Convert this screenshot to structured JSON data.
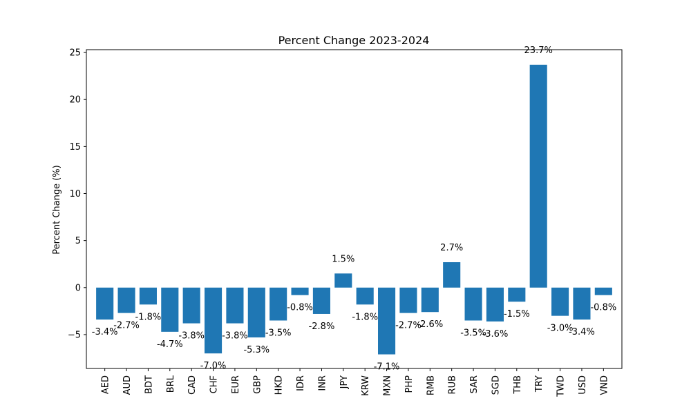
{
  "chart_data": {
    "type": "bar",
    "title": "Percent Change 2023-2024",
    "xlabel": "",
    "ylabel": "Percent Change (%)",
    "categories": [
      "AED",
      "AUD",
      "BDT",
      "BRL",
      "CAD",
      "CHF",
      "EUR",
      "GBP",
      "HKD",
      "IDR",
      "INR",
      "JPY",
      "KRW",
      "MXN",
      "PHP",
      "RMB",
      "RUB",
      "SAR",
      "SGD",
      "THB",
      "TRY",
      "TWD",
      "USD",
      "VND"
    ],
    "values": [
      -3.4,
      -2.7,
      -1.8,
      -4.7,
      -3.8,
      -7.0,
      -3.8,
      -5.3,
      -3.5,
      -0.8,
      -2.8,
      1.5,
      -1.8,
      -7.1,
      -2.7,
      -2.6,
      2.7,
      -3.5,
      -3.6,
      -1.5,
      23.7,
      -3.0,
      -3.4,
      -0.8
    ],
    "value_labels": [
      "-3.4%",
      "-2.7%",
      "-1.8%",
      "-4.7%",
      "-3.8%",
      "-7.0%",
      "-3.8%",
      "-5.3%",
      "-3.5%",
      "-0.8%",
      "-2.8%",
      "1.5%",
      "-1.8%",
      "-7.1%",
      "-2.7%",
      "-2.6%",
      "2.7%",
      "-3.5%",
      "-3.6%",
      "-1.5%",
      "23.7%",
      "-3.0%",
      "-3.4%",
      "-0.8%"
    ],
    "yticks": [
      -5,
      0,
      5,
      10,
      15,
      20,
      25
    ],
    "ylim": [
      -8.6,
      25.3
    ],
    "bar_color": "#1f77b4",
    "grid": false,
    "legend": "none"
  }
}
